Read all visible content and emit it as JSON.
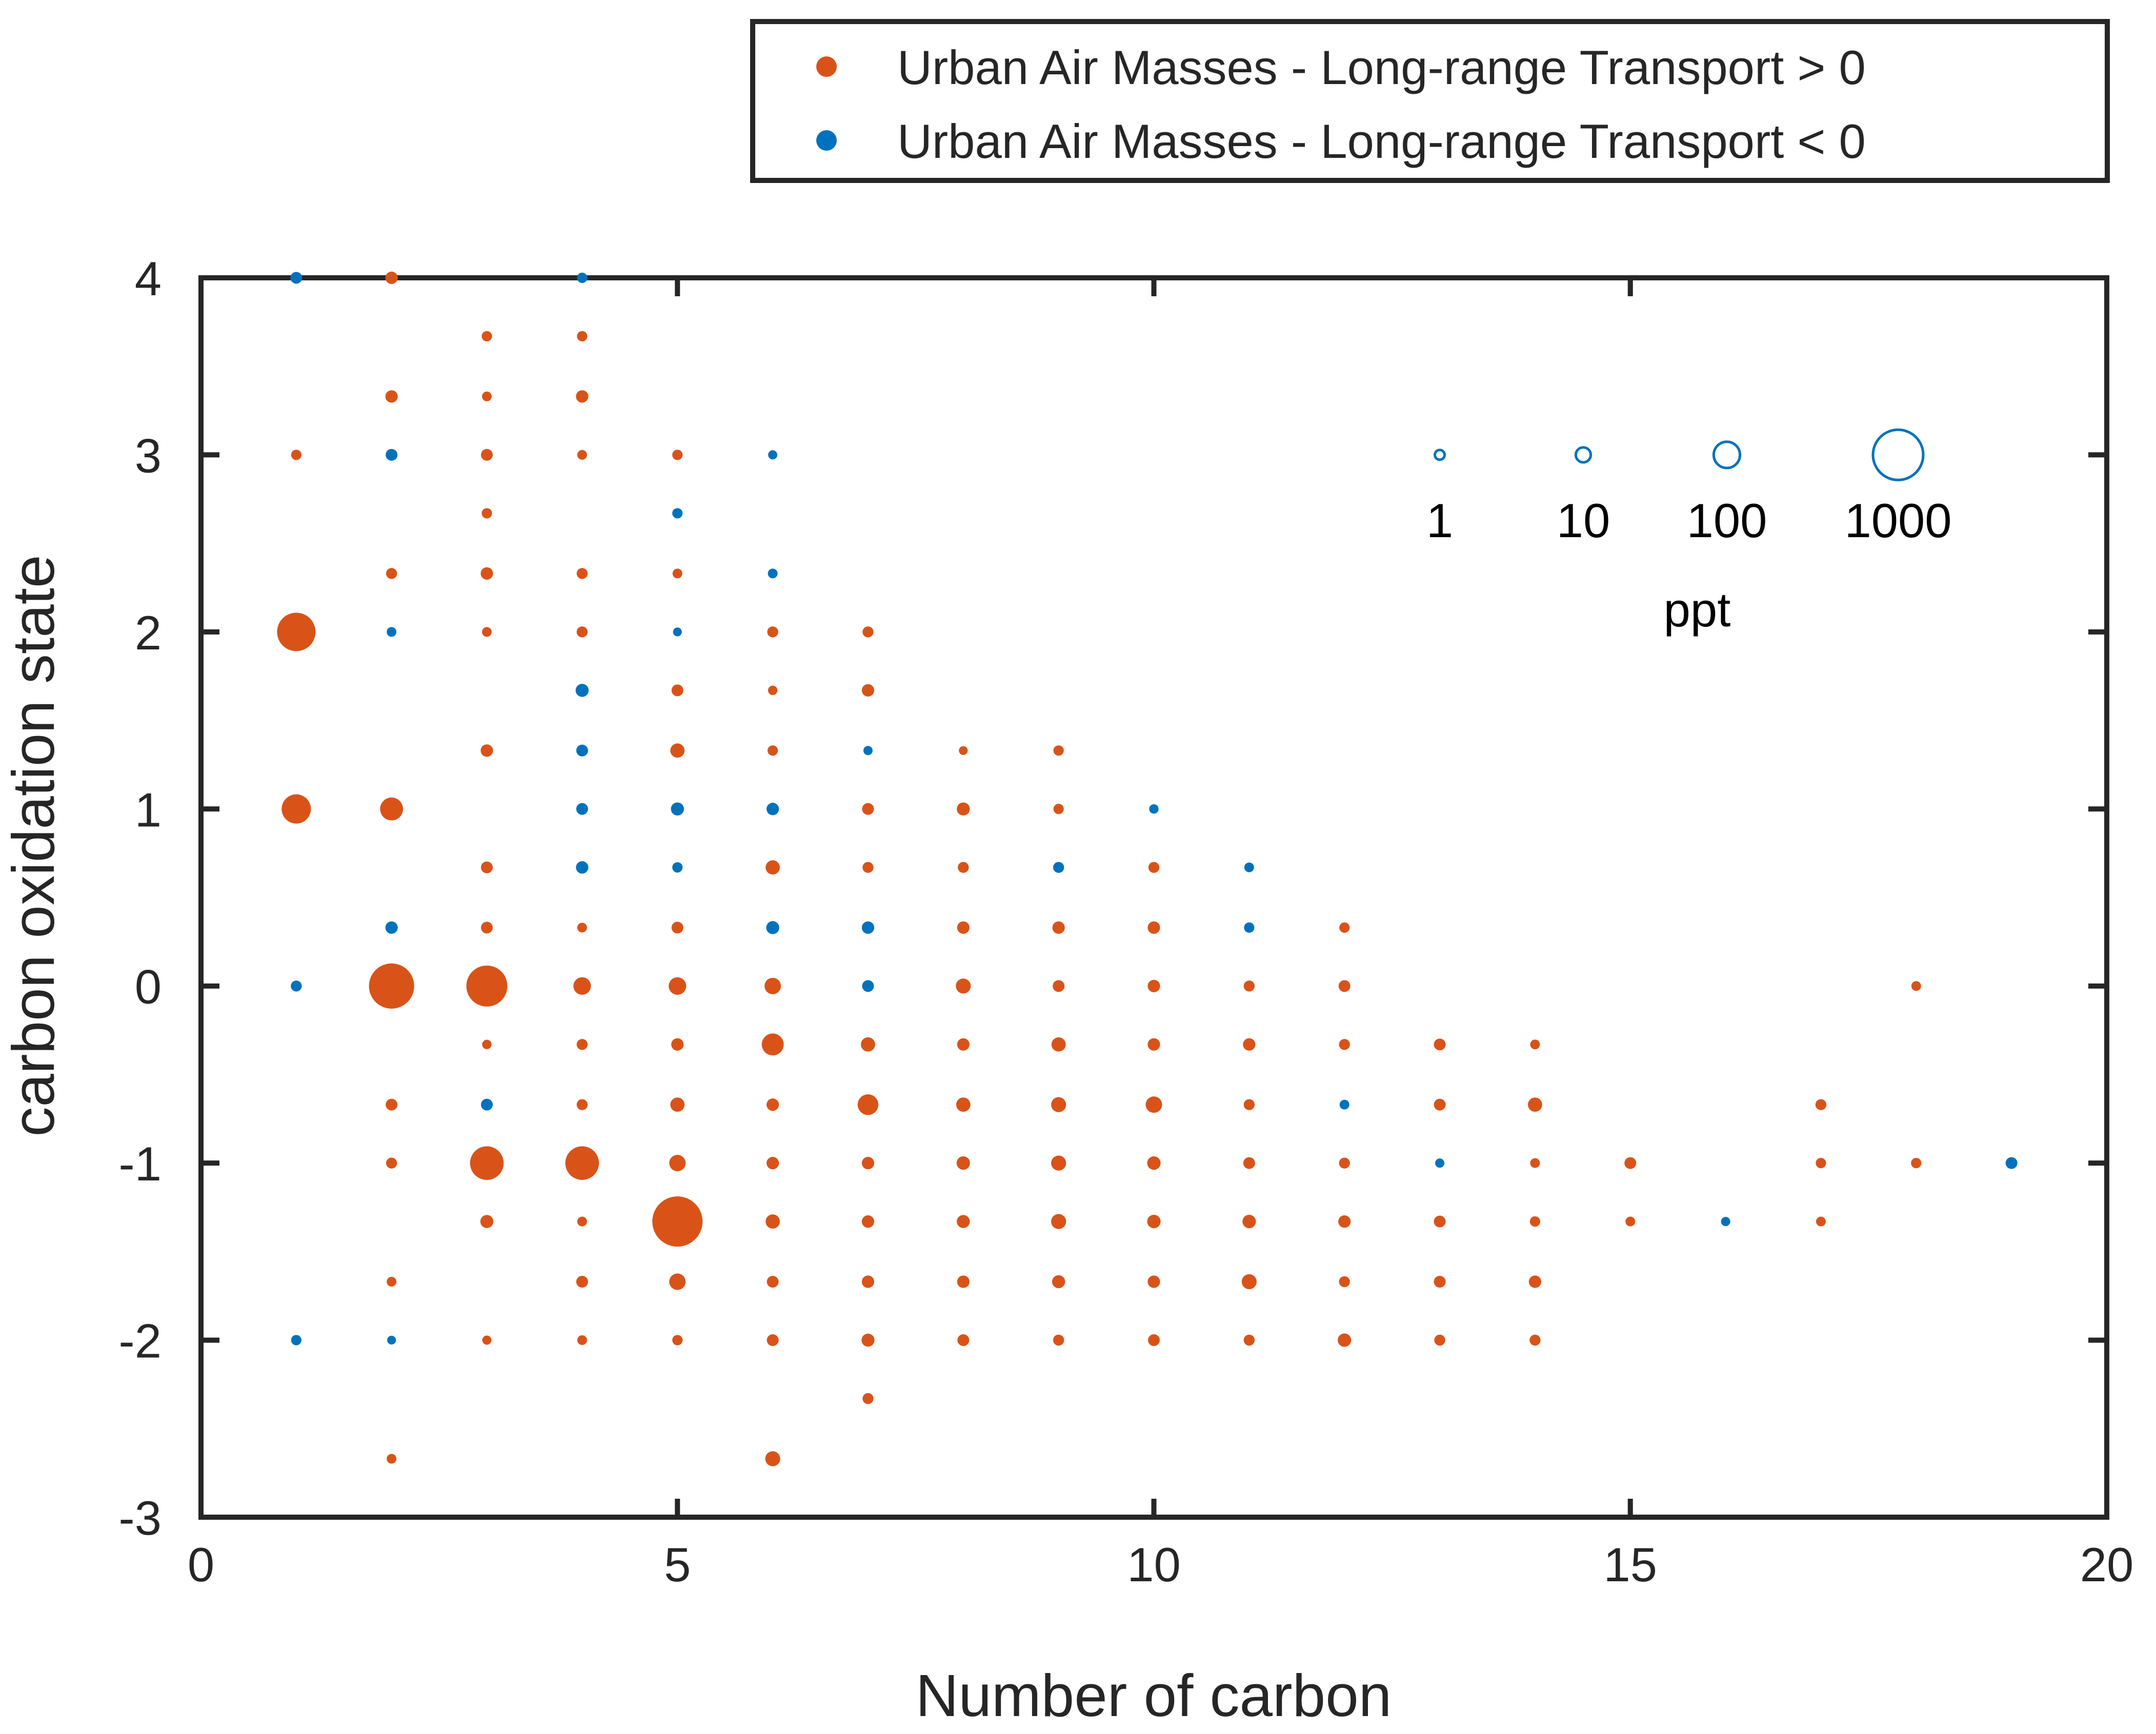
{
  "chart_data": {
    "type": "scatter",
    "subtype": "bubble",
    "title": "",
    "xlabel": "Number of carbon",
    "ylabel": "carbon oxidation state",
    "xlim": [
      0,
      20
    ],
    "ylim": [
      -3,
      4
    ],
    "xticks": [
      0,
      5,
      10,
      15,
      20
    ],
    "yticks": [
      -3,
      -2,
      -1,
      0,
      1,
      2,
      3,
      4
    ],
    "grid": false,
    "legend": {
      "position": "top-right-outside"
    },
    "series": [
      {
        "name": "Urban Air Masses - Long-range Transport > 0",
        "color": "#D95319",
        "points": [
          [
            1,
            3,
            1.5
          ],
          [
            1,
            2,
            400
          ],
          [
            1,
            1,
            150
          ],
          [
            2,
            4,
            4
          ],
          [
            2,
            3.33,
            4
          ],
          [
            2,
            2.33,
            2
          ],
          [
            2,
            1,
            60
          ],
          [
            2,
            0,
            700
          ],
          [
            2,
            -0.67,
            3
          ],
          [
            2,
            -1,
            2
          ],
          [
            2,
            -1.67,
            1
          ],
          [
            2,
            -2.67,
            1
          ],
          [
            3,
            3.67,
            1.5
          ],
          [
            3,
            3.33,
            1
          ],
          [
            3,
            3,
            3
          ],
          [
            3,
            2.67,
            1.5
          ],
          [
            3,
            2.33,
            4
          ],
          [
            3,
            2,
            1
          ],
          [
            3,
            1.33,
            4
          ],
          [
            3,
            0.67,
            3
          ],
          [
            3,
            0.33,
            3
          ],
          [
            3,
            0,
            500
          ],
          [
            3,
            -0.33,
            0.8
          ],
          [
            3,
            -1,
            250
          ],
          [
            3,
            -1.33,
            5
          ],
          [
            3,
            -2,
            0.7
          ],
          [
            4,
            3.67,
            1.5
          ],
          [
            4,
            3.33,
            4
          ],
          [
            4,
            3,
            1
          ],
          [
            4,
            2.33,
            2
          ],
          [
            4,
            2,
            2
          ],
          [
            4,
            0.33,
            1
          ],
          [
            4,
            0,
            20
          ],
          [
            4,
            -0.33,
            2
          ],
          [
            4,
            -0.67,
            2
          ],
          [
            4,
            -1,
            250
          ],
          [
            4,
            -1.33,
            1
          ],
          [
            4,
            -1.67,
            3
          ],
          [
            4,
            -2,
            1
          ],
          [
            5,
            3,
            1.5
          ],
          [
            5,
            2.33,
            1
          ],
          [
            5,
            1.67,
            3
          ],
          [
            5,
            1.33,
            8
          ],
          [
            5,
            0.33,
            3
          ],
          [
            5,
            0,
            20
          ],
          [
            5,
            -0.33,
            4
          ],
          [
            5,
            -0.67,
            8
          ],
          [
            5,
            -1,
            15
          ],
          [
            5,
            -1.33,
            1000
          ],
          [
            5,
            -1.67,
            15
          ],
          [
            5,
            -2,
            1.5
          ],
          [
            6,
            2,
            2
          ],
          [
            6,
            1.67,
            0.8
          ],
          [
            6,
            1.33,
            1.5
          ],
          [
            6,
            0.67,
            8
          ],
          [
            6,
            0,
            15
          ],
          [
            6,
            -0.33,
            50
          ],
          [
            6,
            -0.67,
            4
          ],
          [
            6,
            -1,
            4
          ],
          [
            6,
            -1.33,
            8
          ],
          [
            6,
            -1.67,
            3
          ],
          [
            6,
            -2,
            3
          ],
          [
            6,
            -2.67,
            10
          ],
          [
            7,
            2,
            2
          ],
          [
            7,
            1.67,
            4
          ],
          [
            7,
            1,
            3
          ],
          [
            7,
            0.67,
            2
          ],
          [
            7,
            -0.33,
            8
          ],
          [
            7,
            -0.67,
            40
          ],
          [
            7,
            -1,
            4
          ],
          [
            7,
            -1.33,
            4
          ],
          [
            7,
            -1.67,
            4
          ],
          [
            7,
            -2,
            5
          ],
          [
            7,
            -2.33,
            2
          ],
          [
            8,
            1.33,
            0.5
          ],
          [
            8,
            1,
            5
          ],
          [
            8,
            0.67,
            2
          ],
          [
            8,
            0.33,
            4
          ],
          [
            8,
            0,
            10
          ],
          [
            8,
            -0.33,
            4
          ],
          [
            8,
            -0.67,
            8
          ],
          [
            8,
            -1,
            6
          ],
          [
            8,
            -1.33,
            5
          ],
          [
            8,
            -1.67,
            4
          ],
          [
            8,
            -2,
            3
          ],
          [
            9,
            1.33,
            1.5
          ],
          [
            9,
            1,
            1.5
          ],
          [
            9,
            0.33,
            4
          ],
          [
            9,
            0,
            3
          ],
          [
            9,
            -0.33,
            8
          ],
          [
            9,
            -0.67,
            10
          ],
          [
            9,
            -1,
            10
          ],
          [
            9,
            -1.33,
            10
          ],
          [
            9,
            -1.67,
            5
          ],
          [
            9,
            -2,
            2
          ],
          [
            10,
            0.67,
            2
          ],
          [
            10,
            0.33,
            4
          ],
          [
            10,
            0,
            4
          ],
          [
            10,
            -0.33,
            4
          ],
          [
            10,
            -0.67,
            15
          ],
          [
            10,
            -1,
            6
          ],
          [
            10,
            -1.33,
            6
          ],
          [
            10,
            -1.67,
            4
          ],
          [
            10,
            -2,
            3
          ],
          [
            11,
            0,
            2
          ],
          [
            11,
            -0.33,
            4
          ],
          [
            11,
            -0.67,
            2
          ],
          [
            11,
            -1,
            3
          ],
          [
            11,
            -1.33,
            6
          ],
          [
            11,
            -1.67,
            10
          ],
          [
            11,
            -2,
            2
          ],
          [
            12,
            0.33,
            1.5
          ],
          [
            12,
            0,
            3
          ],
          [
            12,
            -0.33,
            2
          ],
          [
            12,
            -1,
            2
          ],
          [
            12,
            -1.33,
            4
          ],
          [
            12,
            -1.67,
            2
          ],
          [
            12,
            -2,
            6
          ],
          [
            13,
            -0.33,
            3
          ],
          [
            13,
            -0.67,
            3
          ],
          [
            13,
            -1.33,
            3
          ],
          [
            13,
            -1.67,
            3
          ],
          [
            13,
            -2,
            2
          ],
          [
            14,
            -0.33,
            1
          ],
          [
            14,
            -0.67,
            8
          ],
          [
            14,
            -1,
            1
          ],
          [
            14,
            -1.33,
            1.5
          ],
          [
            14,
            -1.67,
            4
          ],
          [
            14,
            -2,
            2
          ],
          [
            15,
            -1,
            3
          ],
          [
            15,
            -1.33,
            1
          ],
          [
            17,
            -0.67,
            2
          ],
          [
            17,
            -1,
            1.5
          ],
          [
            17,
            -1.33,
            1
          ],
          [
            18,
            0,
            1
          ],
          [
            18,
            -1,
            1.5
          ]
        ]
      },
      {
        "name": "Urban Air Masses - Long-range Transport < 0",
        "color": "#0072BD",
        "points": [
          [
            1,
            4,
            3
          ],
          [
            1,
            0,
            2
          ],
          [
            1,
            -2,
            1.5
          ],
          [
            2,
            3,
            3
          ],
          [
            2,
            2,
            1
          ],
          [
            2,
            0.33,
            4
          ],
          [
            2,
            -2,
            0.5
          ],
          [
            3,
            -0.67,
            3
          ],
          [
            4,
            4,
            1.5
          ],
          [
            4,
            1.67,
            5
          ],
          [
            4,
            1.33,
            3
          ],
          [
            4,
            1,
            3
          ],
          [
            4,
            0.67,
            4
          ],
          [
            5,
            2.67,
            1.5
          ],
          [
            5,
            2,
            0.5
          ],
          [
            5,
            1,
            5
          ],
          [
            5,
            0.67,
            1.5
          ],
          [
            6,
            3,
            0.7
          ],
          [
            6,
            2.33,
            1
          ],
          [
            6,
            1,
            4
          ],
          [
            6,
            0.33,
            5
          ],
          [
            7,
            1.33,
            0.7
          ],
          [
            7,
            0.33,
            4
          ],
          [
            7,
            0,
            3
          ],
          [
            9,
            0.67,
            2
          ],
          [
            10,
            1,
            0.8
          ],
          [
            11,
            0.67,
            1
          ],
          [
            11,
            0.33,
            1.5
          ],
          [
            12,
            -0.67,
            1
          ],
          [
            13,
            -1,
            0.7
          ],
          [
            16,
            -1.33,
            0.7
          ],
          [
            19,
            -1,
            3
          ]
        ]
      }
    ],
    "size_legend": {
      "values": [
        1,
        10,
        100,
        1000
      ],
      "labels": [
        "1",
        "10",
        "100",
        "1000"
      ],
      "unit": "ppt",
      "color": "#0072BD"
    }
  }
}
